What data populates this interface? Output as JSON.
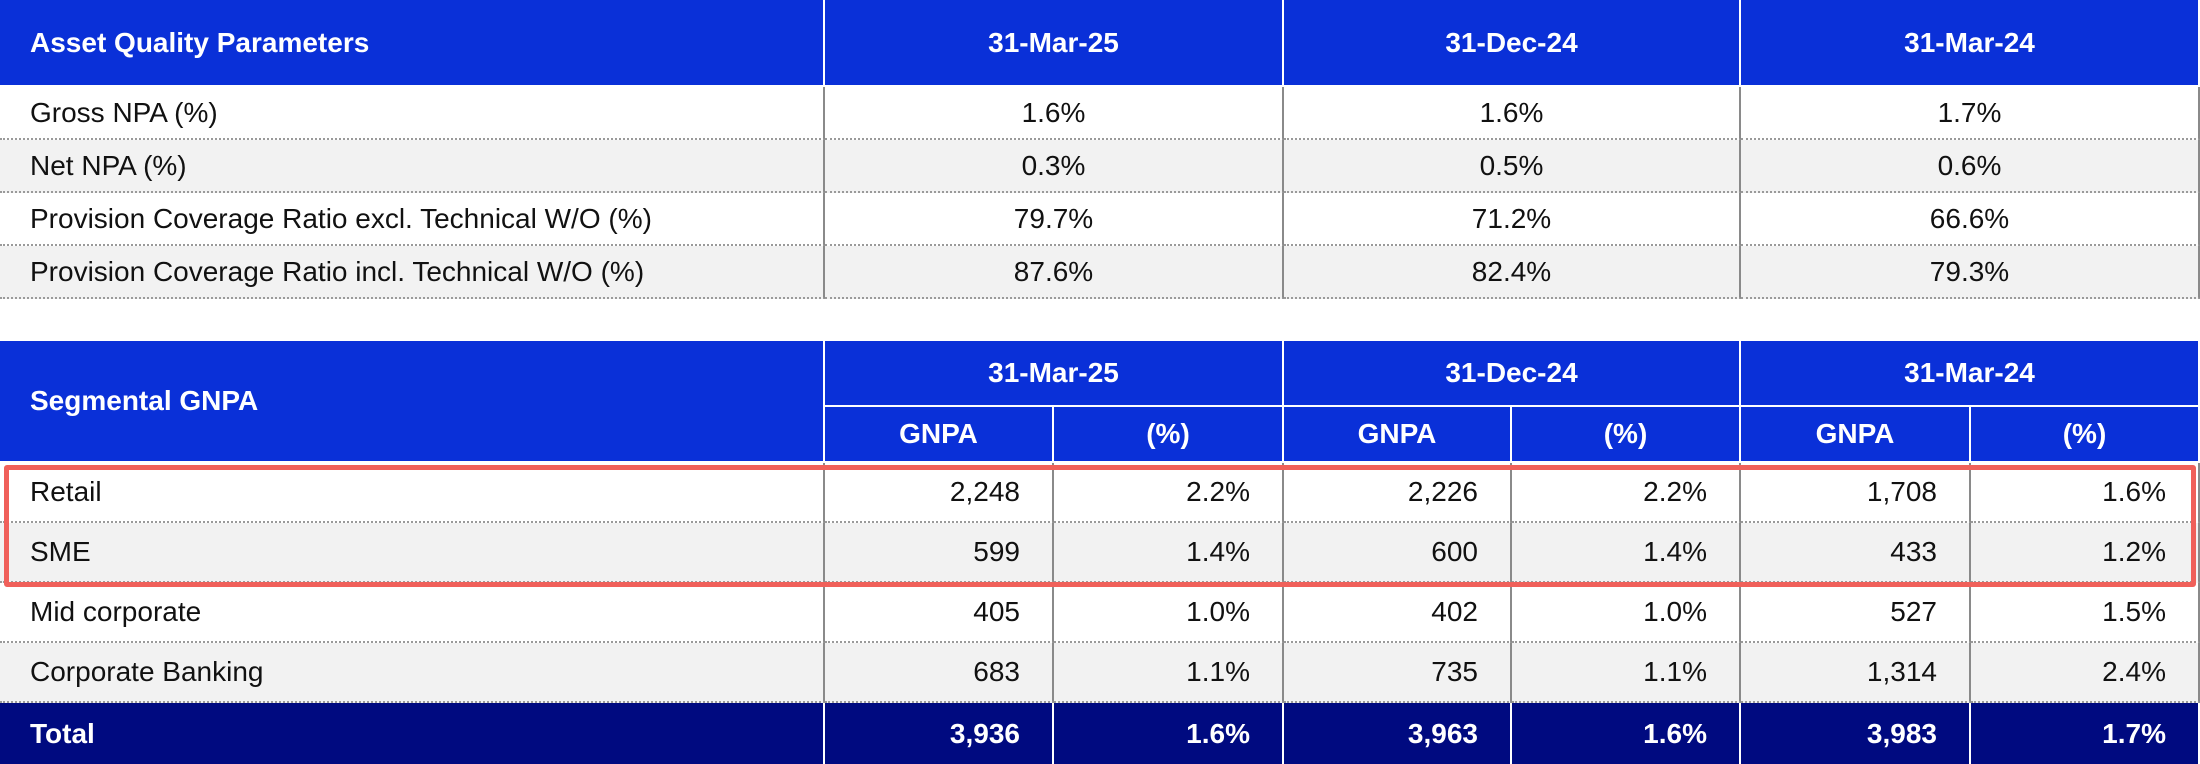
{
  "table1": {
    "header": [
      "Asset Quality Parameters",
      "31-Mar-25",
      "31-Dec-24",
      "31-Mar-24"
    ],
    "rows": [
      [
        "Gross NPA (%)",
        "1.6%",
        "1.6%",
        "1.7%"
      ],
      [
        "Net NPA (%)",
        "0.3%",
        "0.5%",
        "0.6%"
      ],
      [
        "Provision Coverage Ratio excl. Technical W/O (%)",
        "79.7%",
        "71.2%",
        "66.6%"
      ],
      [
        "Provision Coverage Ratio incl. Technical W/O (%)",
        "87.6%",
        "82.4%",
        "79.3%"
      ]
    ]
  },
  "table2": {
    "title": "Segmental GNPA",
    "periods": [
      "31-Mar-25",
      "31-Dec-24",
      "31-Mar-24"
    ],
    "subheaders": [
      "GNPA",
      "(%)",
      "GNPA",
      "(%)",
      "GNPA",
      "(%)"
    ],
    "rows": [
      [
        "Retail",
        "2,248",
        "2.2%",
        "2,226",
        "2.2%",
        "1,708",
        "1.6%"
      ],
      [
        "SME",
        "599",
        "1.4%",
        "600",
        "1.4%",
        "433",
        "1.2%"
      ],
      [
        "Mid corporate",
        "405",
        "1.0%",
        "402",
        "1.0%",
        "527",
        "1.5%"
      ],
      [
        "Corporate Banking",
        "683",
        "1.1%",
        "735",
        "1.1%",
        "1,314",
        "2.4%"
      ]
    ],
    "total": [
      "Total",
      "3,936",
      "1.6%",
      "3,963",
      "1.6%",
      "3,983",
      "1.7%"
    ]
  }
}
